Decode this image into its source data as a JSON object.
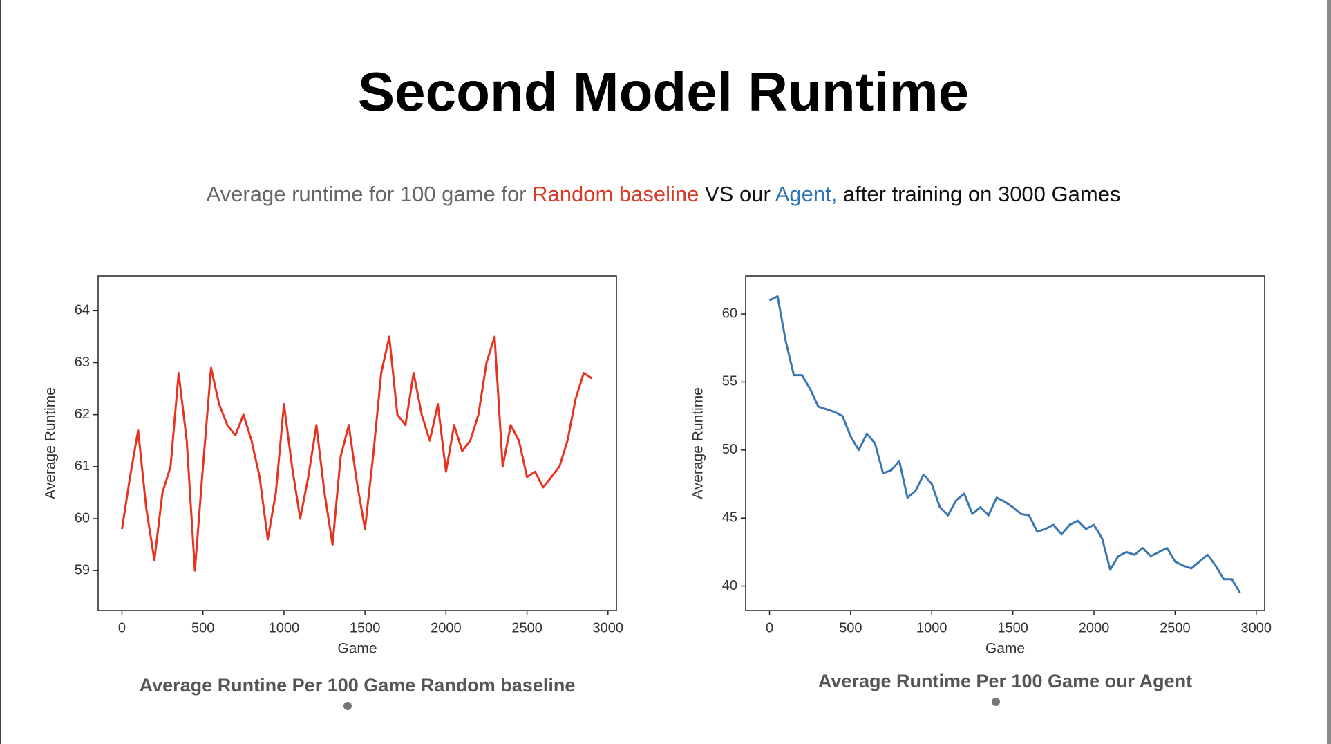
{
  "title": "Second Model Runtime",
  "subtitle": [
    {
      "text": "Average runtime for 100 game for ",
      "color": "#666666"
    },
    {
      "text": "Random baseline",
      "color": "#d93a26"
    },
    {
      "text": " VS our ",
      "color": "#111111"
    },
    {
      "text": "Agent,",
      "color": "#2f75b5"
    },
    {
      "text": " after training on 3000 Games",
      "color": "#111111"
    }
  ],
  "chart_data": [
    {
      "type": "line",
      "xlabel": "Game",
      "ylabel": "Average Runtime",
      "caption": "Average Runtine Per 100 Game Random baseline",
      "color": "#e8321e",
      "xlim": [
        -147,
        3052
      ],
      "ylim": [
        58.23,
        64.67
      ],
      "xticks": [
        0,
        500,
        1000,
        1500,
        2000,
        2500,
        3000
      ],
      "yticks": [
        59,
        60,
        61,
        62,
        63,
        64
      ],
      "x": [
        0,
        50,
        100,
        150,
        200,
        250,
        300,
        350,
        400,
        450,
        500,
        550,
        600,
        650,
        700,
        750,
        800,
        850,
        900,
        950,
        1000,
        1050,
        1100,
        1150,
        1200,
        1250,
        1300,
        1350,
        1400,
        1450,
        1500,
        1550,
        1600,
        1650,
        1700,
        1750,
        1800,
        1850,
        1900,
        1950,
        2000,
        2050,
        2100,
        2150,
        2200,
        2250,
        2300,
        2350,
        2400,
        2450,
        2500,
        2550,
        2600,
        2650,
        2700,
        2750,
        2800,
        2850,
        2900
      ],
      "values": [
        59.8,
        60.8,
        61.7,
        60.2,
        59.2,
        60.5,
        61.0,
        62.8,
        61.5,
        59.0,
        61.0,
        62.9,
        62.2,
        61.8,
        61.6,
        62.0,
        61.5,
        60.8,
        59.6,
        60.5,
        62.2,
        61.0,
        60.0,
        60.8,
        61.8,
        60.5,
        59.5,
        61.2,
        61.8,
        60.7,
        59.8,
        61.2,
        62.8,
        63.5,
        62.0,
        61.8,
        62.8,
        62.0,
        61.5,
        62.2,
        60.9,
        61.8,
        61.3,
        61.5,
        62.0,
        63.0,
        63.5,
        61.0,
        61.8,
        61.5,
        60.8,
        60.9,
        60.6,
        60.8,
        61.0,
        61.5,
        62.3,
        62.8,
        62.7
      ]
    },
    {
      "type": "line",
      "xlabel": "Game",
      "ylabel": "Average Runtime",
      "caption": "Average Runtime Per 100 Game our Agent",
      "color": "#3a76b0",
      "xlim": [
        -147,
        3052
      ],
      "ylim": [
        38.2,
        62.8
      ],
      "xticks": [
        0,
        500,
        1000,
        1500,
        2000,
        2500,
        3000
      ],
      "yticks": [
        40,
        45,
        50,
        55,
        60
      ],
      "x": [
        0,
        50,
        100,
        150,
        200,
        250,
        300,
        350,
        400,
        450,
        500,
        550,
        600,
        650,
        700,
        750,
        800,
        850,
        900,
        950,
        1000,
        1050,
        1100,
        1150,
        1200,
        1250,
        1300,
        1350,
        1400,
        1450,
        1500,
        1550,
        1600,
        1650,
        1700,
        1750,
        1800,
        1850,
        1900,
        1950,
        2000,
        2050,
        2100,
        2150,
        2200,
        2250,
        2300,
        2350,
        2400,
        2450,
        2500,
        2550,
        2600,
        2650,
        2700,
        2750,
        2800,
        2850,
        2900
      ],
      "values": [
        61,
        61.3,
        58,
        55.5,
        55.5,
        54.5,
        53.2,
        53,
        52.8,
        52.5,
        51,
        50,
        51.2,
        50.5,
        48.3,
        48.5,
        49.2,
        46.5,
        47,
        48.2,
        47.5,
        45.8,
        45.2,
        46.3,
        46.8,
        45.3,
        45.8,
        45.2,
        46.5,
        46.2,
        45.8,
        45.3,
        45.2,
        44.0,
        44.2,
        44.5,
        43.8,
        44.5,
        44.8,
        44.2,
        44.5,
        43.5,
        41.2,
        42.2,
        42.5,
        42.3,
        42.8,
        42.2,
        42.5,
        42.8,
        41.8,
        41.5,
        41.3,
        41.8,
        42.3,
        41.5,
        40.5,
        40.5,
        39.5
      ]
    }
  ]
}
